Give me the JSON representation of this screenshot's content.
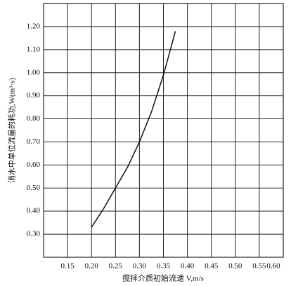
{
  "chart_data": {
    "type": "line",
    "x_label": "搅拌介质初始流速 V,m/s",
    "y_label": "消水中单位流量的耗功,W(m³·s)",
    "x": [
      0.2,
      0.225,
      0.25,
      0.275,
      0.3,
      0.325,
      0.35,
      0.375
    ],
    "series": [
      {
        "color": "#111111",
        "values": [
          0.33,
          0.41,
          0.5,
          0.59,
          0.7,
          0.83,
          0.99,
          1.18
        ]
      }
    ],
    "xlim": [
      0.1,
      0.6
    ],
    "xticks": [
      {
        "value": 0.15,
        "label": "0.15"
      },
      {
        "value": 0.2,
        "label": "0.20"
      },
      {
        "value": 0.25,
        "label": "0.25"
      },
      {
        "value": 0.3,
        "label": "0.30"
      },
      {
        "value": 0.35,
        "label": "0.35"
      },
      {
        "value": 0.4,
        "label": "0.40"
      },
      {
        "value": 0.45,
        "label": "0.45"
      },
      {
        "value": 0.5,
        "label": "0.50"
      },
      {
        "value": 0.55,
        "label": "0.55"
      },
      {
        "value": 0.6,
        "label": "0.60"
      }
    ],
    "ylim": [
      0.2,
      1.3
    ],
    "yticks": [
      {
        "value": 0.3,
        "label": "0.30"
      },
      {
        "value": 0.4,
        "label": "0.40"
      },
      {
        "value": 0.5,
        "label": "0.50"
      },
      {
        "value": 0.6,
        "label": "0.60"
      },
      {
        "value": 0.7,
        "label": "0.70"
      },
      {
        "value": 0.8,
        "label": "0.80"
      },
      {
        "value": 0.9,
        "label": "0.90"
      },
      {
        "value": 1.0,
        "label": "1.00"
      },
      {
        "value": 1.1,
        "label": "1.10"
      },
      {
        "value": 1.2,
        "label": "1.20"
      }
    ],
    "grid": true
  }
}
